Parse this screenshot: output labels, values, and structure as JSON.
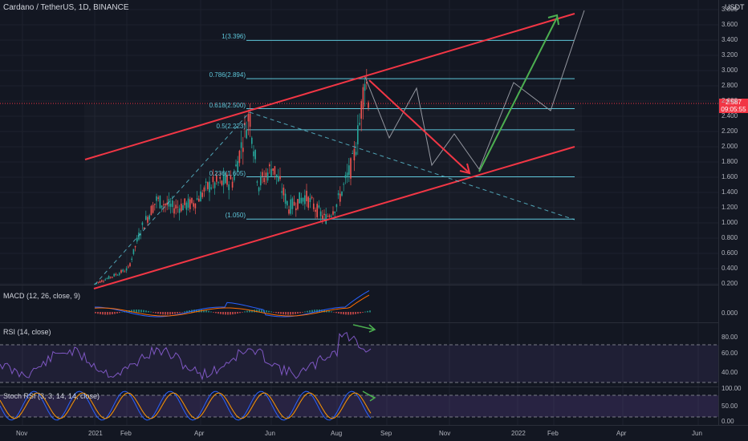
{
  "header": {
    "symbol_title": "Cardano / TetherUS, 1D, BINANCE",
    "currency": "USDT"
  },
  "price_tag": {
    "price": "2.587",
    "countdown": "09:05:55"
  },
  "panes": {
    "macd": {
      "label": "MACD (12, 26, close, 9)"
    },
    "rsi": {
      "label": "RSI (14, close)"
    },
    "stoch": {
      "label": "Stoch RSI (3, 3, 14, 14, close)"
    }
  },
  "price_axis": [
    "3.800",
    "3.600",
    "3.400",
    "3.200",
    "3.000",
    "2.800",
    "2.600",
    "2.400",
    "2.200",
    "2.000",
    "1.800",
    "1.600",
    "1.400",
    "1.200",
    "1.000",
    "0.800",
    "0.600",
    "0.400",
    "0.200"
  ],
  "macd_axis": [
    "0.000"
  ],
  "rsi_axis": [
    "80.00",
    "60.00",
    "40.00"
  ],
  "stoch_axis": [
    "100.00",
    "50.00",
    "0.00"
  ],
  "time_axis": [
    "Nov",
    "2021",
    "Feb",
    "Apr",
    "Jun",
    "Aug",
    "Sep",
    "Nov",
    "2022",
    "Feb",
    "Apr",
    "Jun"
  ],
  "fib_levels": [
    {
      "label": "1(3.396)",
      "value": 3.396
    },
    {
      "label": "0.786(2.894)",
      "value": 2.894
    },
    {
      "label": "0.618(2.500)",
      "value": 2.5
    },
    {
      "label": "0.5(2.223)",
      "value": 2.223
    },
    {
      "label": "0.236(1.605)",
      "value": 1.605
    },
    {
      "label": "(1.050)",
      "value": 1.05
    }
  ],
  "colors": {
    "background": "#131722",
    "channel": "#f23645",
    "fib": "#5ec6d9",
    "bull": "#26a69a",
    "bear": "#ef5350",
    "projection_down": "#f23645",
    "projection_up": "#4caf50",
    "rsi": "#7e57c2",
    "macd_line": "#2962ff",
    "signal_line": "#ff6d00"
  }
}
